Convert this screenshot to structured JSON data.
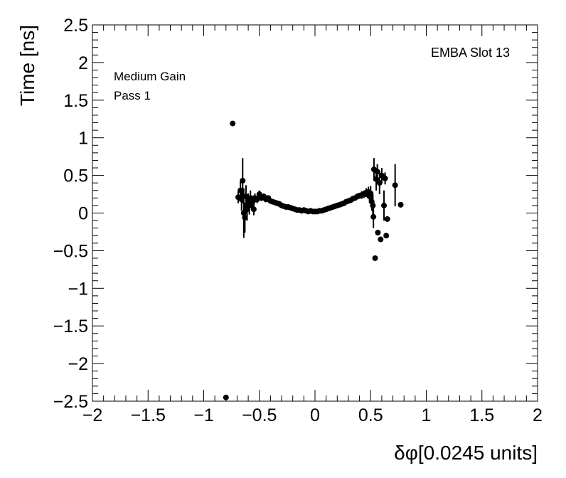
{
  "chart_data": {
    "type": "scatter",
    "title": "",
    "xlabel": "δφ[0.0245 units]",
    "ylabel": "Time [ns]",
    "xlim": [
      -2,
      2
    ],
    "ylim": [
      -2.5,
      2.5
    ],
    "x_ticks": [
      -2,
      -1.5,
      -1,
      -0.5,
      0,
      0.5,
      1,
      1.5,
      2
    ],
    "x_tick_labels": [
      "−2",
      "−1.5",
      "−1",
      "−0.5",
      "0",
      "0.5",
      "1",
      "1.5",
      "2"
    ],
    "y_ticks": [
      -2.5,
      -2,
      -1.5,
      -1,
      -0.5,
      0,
      0.5,
      1,
      1.5,
      2,
      2.5
    ],
    "y_tick_labels": [
      "−2.5",
      "−2",
      "−1.5",
      "−1",
      "−0.5",
      "0",
      "0.5",
      "1",
      "1.5",
      "2",
      "2.5"
    ],
    "grid": false,
    "annotations": {
      "top_right": "EMBA Slot 13",
      "top_left_1": "Medium Gain",
      "top_left_2": "Pass 1"
    },
    "series": [
      {
        "marker": "circle",
        "color": "#000000",
        "points": [
          {
            "x": -0.8,
            "y": -2.45,
            "err": 0
          },
          {
            "x": -0.74,
            "y": 1.19,
            "err": 0
          },
          {
            "x": -0.69,
            "y": 0.21,
            "err": 0.08
          },
          {
            "x": -0.67,
            "y": 0.3,
            "err": 0.12
          },
          {
            "x": -0.66,
            "y": 0.18,
            "err": 0.15
          },
          {
            "x": -0.65,
            "y": 0.43,
            "err": 0.3
          },
          {
            "x": -0.64,
            "y": 0.0,
            "err": 0.33
          },
          {
            "x": -0.63,
            "y": -0.06,
            "err": 0.2
          },
          {
            "x": -0.62,
            "y": 0.22,
            "err": 0.15
          },
          {
            "x": -0.61,
            "y": 0.05,
            "err": 0.15
          },
          {
            "x": -0.6,
            "y": 0.16,
            "err": 0.1
          },
          {
            "x": -0.59,
            "y": 0.1,
            "err": 0.12
          },
          {
            "x": -0.58,
            "y": 0.2,
            "err": 0.1
          },
          {
            "x": -0.57,
            "y": 0.12,
            "err": 0.08
          },
          {
            "x": -0.56,
            "y": 0.15,
            "err": 0.08
          },
          {
            "x": -0.55,
            "y": 0.05,
            "err": 0.08
          },
          {
            "x": -0.54,
            "y": 0.2,
            "err": 0.06
          },
          {
            "x": -0.52,
            "y": 0.18,
            "err": 0.05
          },
          {
            "x": -0.5,
            "y": 0.25,
            "err": 0.05
          },
          {
            "x": -0.48,
            "y": 0.2,
            "err": 0.04
          },
          {
            "x": -0.46,
            "y": 0.22,
            "err": 0.04
          },
          {
            "x": -0.44,
            "y": 0.18,
            "err": 0.03
          },
          {
            "x": -0.42,
            "y": 0.2,
            "err": 0.03
          },
          {
            "x": -0.4,
            "y": 0.16,
            "err": 0.03
          },
          {
            "x": -0.38,
            "y": 0.15,
            "err": 0.02
          },
          {
            "x": -0.36,
            "y": 0.14,
            "err": 0.02
          },
          {
            "x": -0.34,
            "y": 0.13,
            "err": 0.02
          },
          {
            "x": -0.32,
            "y": 0.12,
            "err": 0.02
          },
          {
            "x": -0.3,
            "y": 0.1,
            "err": 0.02
          },
          {
            "x": -0.28,
            "y": 0.09,
            "err": 0.02
          },
          {
            "x": -0.26,
            "y": 0.08,
            "err": 0.02
          },
          {
            "x": -0.24,
            "y": 0.08,
            "err": 0.02
          },
          {
            "x": -0.22,
            "y": 0.07,
            "err": 0.02
          },
          {
            "x": -0.2,
            "y": 0.06,
            "err": 0.02
          },
          {
            "x": -0.18,
            "y": 0.05,
            "err": 0.02
          },
          {
            "x": -0.16,
            "y": 0.04,
            "err": 0.02
          },
          {
            "x": -0.14,
            "y": 0.04,
            "err": 0.02
          },
          {
            "x": -0.12,
            "y": 0.03,
            "err": 0.02
          },
          {
            "x": -0.1,
            "y": 0.04,
            "err": 0.02
          },
          {
            "x": -0.08,
            "y": 0.03,
            "err": 0.02
          },
          {
            "x": -0.06,
            "y": 0.02,
            "err": 0.02
          },
          {
            "x": -0.04,
            "y": 0.03,
            "err": 0.02
          },
          {
            "x": -0.02,
            "y": 0.02,
            "err": 0.02
          },
          {
            "x": 0.0,
            "y": 0.02,
            "err": 0.02
          },
          {
            "x": 0.02,
            "y": 0.02,
            "err": 0.02
          },
          {
            "x": 0.04,
            "y": 0.03,
            "err": 0.02
          },
          {
            "x": 0.06,
            "y": 0.03,
            "err": 0.02
          },
          {
            "x": 0.08,
            "y": 0.04,
            "err": 0.02
          },
          {
            "x": 0.1,
            "y": 0.05,
            "err": 0.02
          },
          {
            "x": 0.12,
            "y": 0.06,
            "err": 0.02
          },
          {
            "x": 0.14,
            "y": 0.07,
            "err": 0.02
          },
          {
            "x": 0.16,
            "y": 0.08,
            "err": 0.02
          },
          {
            "x": 0.18,
            "y": 0.09,
            "err": 0.02
          },
          {
            "x": 0.2,
            "y": 0.1,
            "err": 0.02
          },
          {
            "x": 0.22,
            "y": 0.11,
            "err": 0.02
          },
          {
            "x": 0.24,
            "y": 0.12,
            "err": 0.02
          },
          {
            "x": 0.26,
            "y": 0.13,
            "err": 0.02
          },
          {
            "x": 0.28,
            "y": 0.15,
            "err": 0.02
          },
          {
            "x": 0.3,
            "y": 0.16,
            "err": 0.03
          },
          {
            "x": 0.32,
            "y": 0.17,
            "err": 0.03
          },
          {
            "x": 0.34,
            "y": 0.19,
            "err": 0.03
          },
          {
            "x": 0.36,
            "y": 0.2,
            "err": 0.03
          },
          {
            "x": 0.38,
            "y": 0.22,
            "err": 0.04
          },
          {
            "x": 0.4,
            "y": 0.23,
            "err": 0.04
          },
          {
            "x": 0.42,
            "y": 0.24,
            "err": 0.05
          },
          {
            "x": 0.44,
            "y": 0.25,
            "err": 0.05
          },
          {
            "x": 0.46,
            "y": 0.27,
            "err": 0.06
          },
          {
            "x": 0.48,
            "y": 0.28,
            "err": 0.07
          },
          {
            "x": 0.49,
            "y": 0.22,
            "err": 0.08
          },
          {
            "x": 0.5,
            "y": 0.26,
            "err": 0.1
          },
          {
            "x": 0.51,
            "y": 0.15,
            "err": 0.12
          },
          {
            "x": 0.52,
            "y": 0.1,
            "err": 0.15
          },
          {
            "x": 0.525,
            "y": -0.05,
            "err": 0.15
          },
          {
            "x": 0.53,
            "y": 0.58,
            "err": 0.15
          },
          {
            "x": 0.54,
            "y": -0.6,
            "err": 0
          },
          {
            "x": 0.55,
            "y": 0.45,
            "err": 0.15
          },
          {
            "x": 0.56,
            "y": 0.55,
            "err": 0.1
          },
          {
            "x": 0.565,
            "y": -0.26,
            "err": 0
          },
          {
            "x": 0.58,
            "y": 0.4,
            "err": 0.15
          },
          {
            "x": 0.59,
            "y": -0.35,
            "err": 0
          },
          {
            "x": 0.6,
            "y": 0.5,
            "err": 0.1
          },
          {
            "x": 0.62,
            "y": 0.1,
            "err": 0.2
          },
          {
            "x": 0.63,
            "y": 0.46,
            "err": 0.08
          },
          {
            "x": 0.64,
            "y": -0.3,
            "err": 0
          },
          {
            "x": 0.65,
            "y": -0.08,
            "err": 0
          },
          {
            "x": 0.72,
            "y": 0.37,
            "err": 0.28
          },
          {
            "x": 0.77,
            "y": 0.11,
            "err": 0
          }
        ]
      }
    ]
  }
}
